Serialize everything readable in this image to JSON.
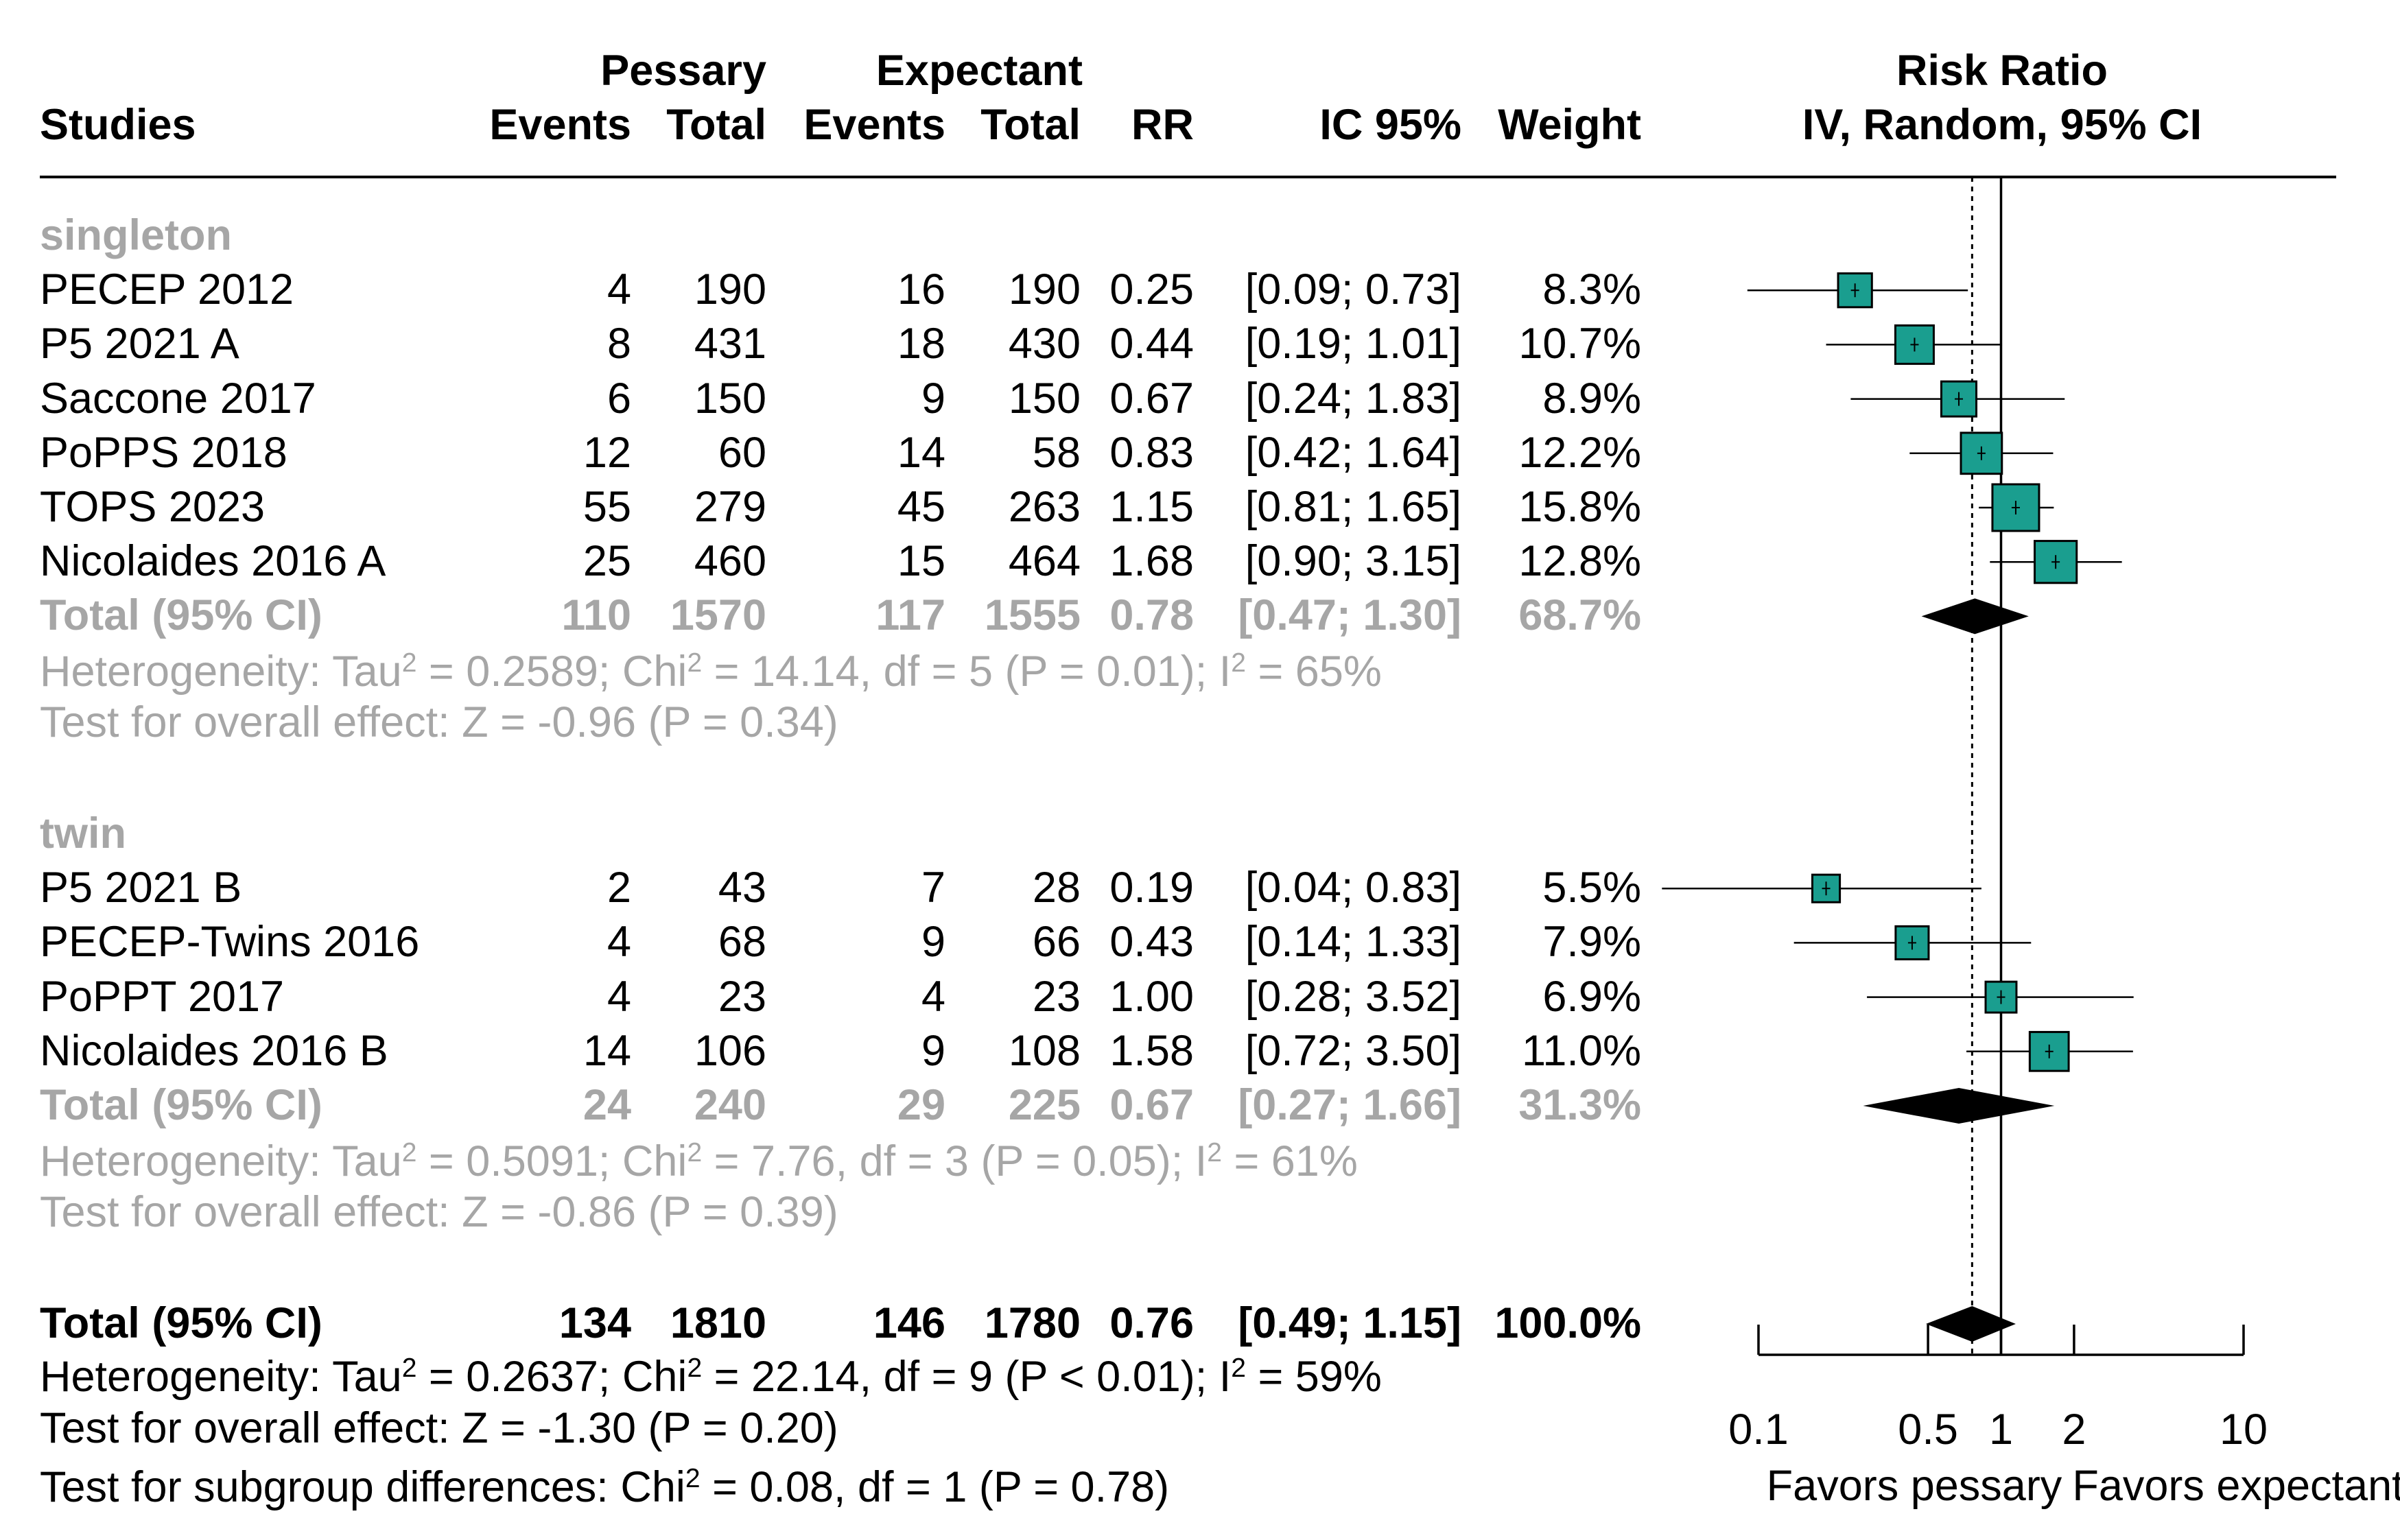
{
  "header": {
    "studies": "Studies",
    "pessary": "Pessary",
    "expectant": "Expectant",
    "events": "Events",
    "total": "Total",
    "rr": "RR",
    "ci": "IC 95%",
    "weight": "Weight",
    "plot_title_1": "Risk Ratio",
    "plot_title_2": "IV, Random, 95% CI"
  },
  "subgroups": [
    {
      "name": "singleton",
      "studies": [
        {
          "study": "PECEP 2012",
          "pe": "4",
          "pt": "190",
          "ee": "16",
          "et": "190",
          "rr": "0.25",
          "ci": "[0.09; 0.73]",
          "weight": "8.3%"
        },
        {
          "study": "P5 2021 A",
          "pe": "8",
          "pt": "431",
          "ee": "18",
          "et": "430",
          "rr": "0.44",
          "ci": "[0.19; 1.01]",
          "weight": "10.7%"
        },
        {
          "study": "Saccone 2017",
          "pe": "6",
          "pt": "150",
          "ee": "9",
          "et": "150",
          "rr": "0.67",
          "ci": "[0.24; 1.83]",
          "weight": "8.9%"
        },
        {
          "study": "PoPPS 2018",
          "pe": "12",
          "pt": "60",
          "ee": "14",
          "et": "58",
          "rr": "0.83",
          "ci": "[0.42; 1.64]",
          "weight": "12.2%"
        },
        {
          "study": "TOPS 2023",
          "pe": "55",
          "pt": "279",
          "ee": "45",
          "et": "263",
          "rr": "1.15",
          "ci": "[0.81; 1.65]",
          "weight": "15.8%"
        },
        {
          "study": "Nicolaides 2016 A",
          "pe": "25",
          "pt": "460",
          "ee": "15",
          "et": "464",
          "rr": "1.68",
          "ci": "[0.90; 3.15]",
          "weight": "12.8%"
        }
      ],
      "total": {
        "label": "Total (95% CI)",
        "pe": "110",
        "pt": "1570",
        "ee": "117",
        "et": "1555",
        "rr": "0.78",
        "ci": "[0.47; 1.30]",
        "weight": "68.7%"
      },
      "het": {
        "a": "Heterogeneity: Tau",
        "b": " = 0.2589; Chi",
        "c": " = 14.14, df = 5 (P = 0.01); I",
        "d": " = 65%",
        "sup": "2"
      },
      "test": "Test for overall effect: Z = -0.96 (P = 0.34)"
    },
    {
      "name": "twin",
      "studies": [
        {
          "study": "P5 2021 B",
          "pe": "2",
          "pt": "43",
          "ee": "7",
          "et": "28",
          "rr": "0.19",
          "ci": "[0.04; 0.83]",
          "weight": "5.5%"
        },
        {
          "study": "PECEP-Twins 2016",
          "pe": "4",
          "pt": "68",
          "ee": "9",
          "et": "66",
          "rr": "0.43",
          "ci": "[0.14; 1.33]",
          "weight": "7.9%"
        },
        {
          "study": "PoPPT 2017",
          "pe": "4",
          "pt": "23",
          "ee": "4",
          "et": "23",
          "rr": "1.00",
          "ci": "[0.28; 3.52]",
          "weight": "6.9%"
        },
        {
          "study": "Nicolaides 2016 B",
          "pe": "14",
          "pt": "106",
          "ee": "9",
          "et": "108",
          "rr": "1.58",
          "ci": "[0.72; 3.50]",
          "weight": "11.0%"
        }
      ],
      "total": {
        "label": "Total (95% CI)",
        "pe": "24",
        "pt": "240",
        "ee": "29",
        "et": "225",
        "rr": "0.67",
        "ci": "[0.27; 1.66]",
        "weight": "31.3%"
      },
      "het": {
        "a": "Heterogeneity: Tau",
        "b": " = 0.5091; Chi",
        "c": " = 7.76, df = 3 (P = 0.05); I",
        "d": " = 61%",
        "sup": "2"
      },
      "test": "Test for overall effect: Z = -0.86 (P = 0.39)"
    }
  ],
  "overall": {
    "total": {
      "label": "Total (95% CI)",
      "pe": "134",
      "pt": "1810",
      "ee": "146",
      "et": "1780",
      "rr": "0.76",
      "ci": "[0.49; 1.15]",
      "weight": "100.0%"
    },
    "het": {
      "a": "Heterogeneity: Tau",
      "b": " = 0.2637; Chi",
      "c": " = 22.14, df = 9 (P < 0.01); I",
      "d": " = 59%",
      "sup": "2"
    },
    "test": "Test for overall effect: Z = -1.30 (P = 0.20)",
    "subgroup": {
      "a": "Test for subgroup differences: Chi",
      "b": " = 0.08, df = 1 (P = 0.78)",
      "sup": "2"
    }
  },
  "colors": {
    "box": "#1a9e8f",
    "text": "#000000",
    "muted": "#a6a6a6"
  },
  "chart_data": {
    "type": "forest",
    "title": "Risk Ratio IV, Random, 95% CI",
    "scale": "log",
    "xlim": [
      0.1,
      10
    ],
    "ticks": [
      "0.1",
      "0.5",
      "1",
      "2",
      "10"
    ],
    "tick_values": [
      0.1,
      0.5,
      1,
      2,
      10
    ],
    "null_value": 1,
    "overall_estimate_line": 0.76,
    "xlabel_left": "Favors pessary",
    "xlabel_right": "Favors expectant",
    "studies": [
      {
        "study": "PECEP 2012",
        "rr": 0.25,
        "lo": 0.09,
        "hi": 0.73,
        "weight": 8.3
      },
      {
        "study": "P5 2021 A",
        "rr": 0.44,
        "lo": 0.19,
        "hi": 1.01,
        "weight": 10.7
      },
      {
        "study": "Saccone 2017",
        "rr": 0.67,
        "lo": 0.24,
        "hi": 1.83,
        "weight": 8.9
      },
      {
        "study": "PoPPS 2018",
        "rr": 0.83,
        "lo": 0.42,
        "hi": 1.64,
        "weight": 12.2
      },
      {
        "study": "TOPS 2023",
        "rr": 1.15,
        "lo": 0.81,
        "hi": 1.65,
        "weight": 15.8
      },
      {
        "study": "Nicolaides 2016 A",
        "rr": 1.68,
        "lo": 0.9,
        "hi": 3.15,
        "weight": 12.8
      },
      {
        "study": "P5 2021 B",
        "rr": 0.19,
        "lo": 0.04,
        "hi": 0.83,
        "weight": 5.5
      },
      {
        "study": "PECEP-Twins 2016",
        "rr": 0.43,
        "lo": 0.14,
        "hi": 1.33,
        "weight": 7.9
      },
      {
        "study": "PoPPT 2017",
        "rr": 1.0,
        "lo": 0.28,
        "hi": 3.52,
        "weight": 6.9
      },
      {
        "study": "Nicolaides 2016 B",
        "rr": 1.58,
        "lo": 0.72,
        "hi": 3.5,
        "weight": 11.0
      }
    ],
    "diamonds": [
      {
        "name": "singleton total",
        "rr": 0.78,
        "lo": 0.47,
        "hi": 1.3
      },
      {
        "name": "twin total",
        "rr": 0.67,
        "lo": 0.27,
        "hi": 1.66
      },
      {
        "name": "overall total",
        "rr": 0.76,
        "lo": 0.49,
        "hi": 1.15
      }
    ]
  }
}
